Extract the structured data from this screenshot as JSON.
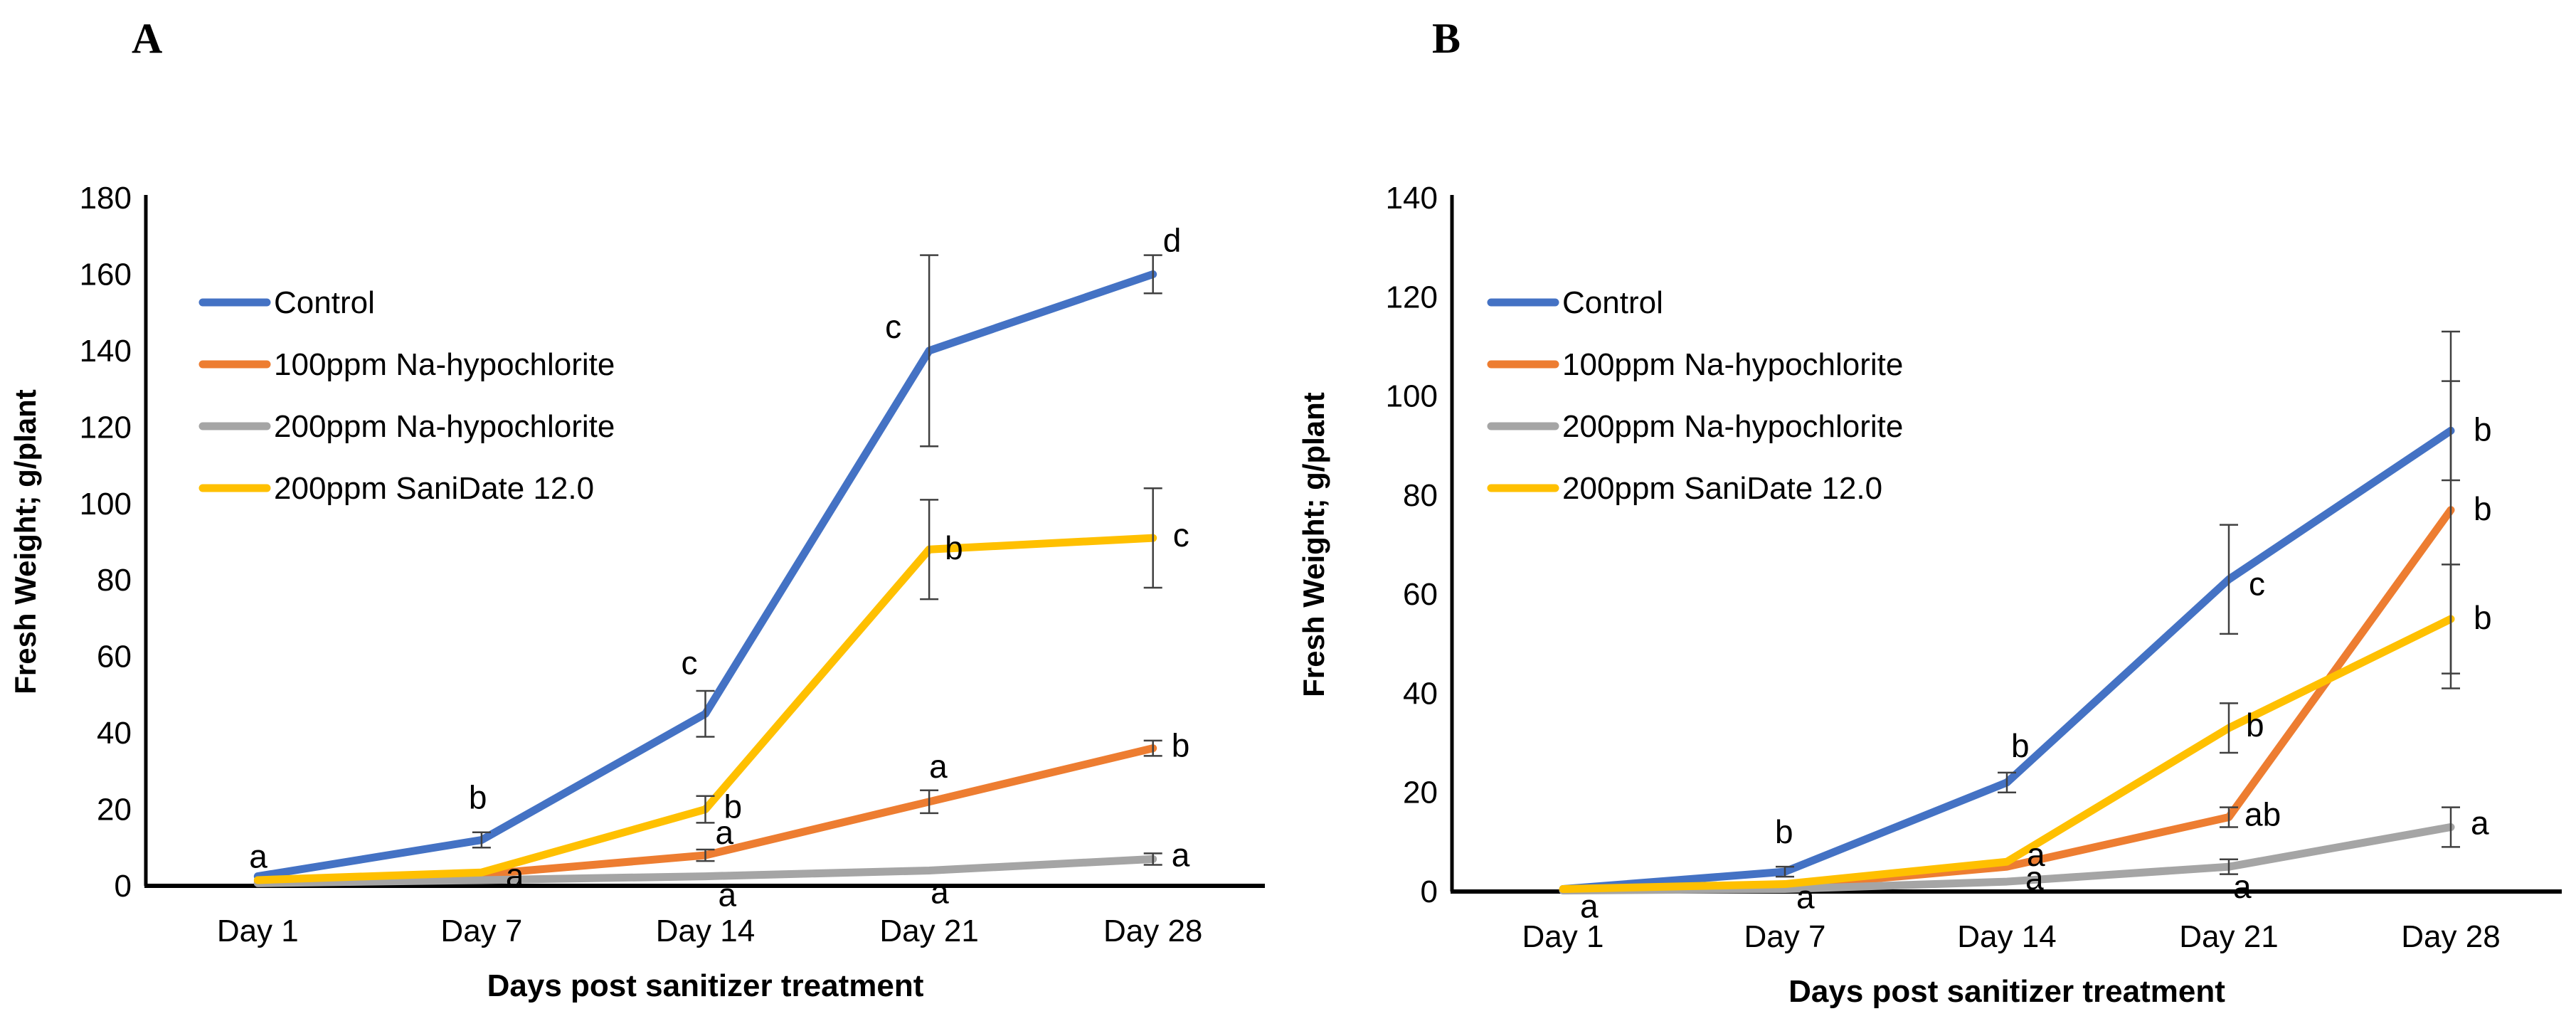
{
  "figure_background": "#ffffff",
  "chart_data": [
    {
      "type": "line",
      "panel_label": "A",
      "xlabel": "Days post sanitizer treatment",
      "ylabel": "Fresh Weight; g/plant",
      "ylim": [
        0,
        180
      ],
      "ytick_step": 20,
      "grid": false,
      "legend_position": "upper-left-inside",
      "error_bar_color": "#404040",
      "categories": [
        "Day 1",
        "Day 7",
        "Day 14",
        "Day 21",
        "Day 28"
      ],
      "series": [
        {
          "name": "Control",
          "color": "#4472C4",
          "values": [
            2.5,
            12,
            45,
            140,
            160
          ],
          "errors": [
            null,
            2,
            6,
            25,
            5
          ],
          "sig": [
            {
              "p": 0,
              "t": "a",
              "dx": -12,
              "dy": -12
            },
            {
              "p": 1,
              "t": "b",
              "dx": -18,
              "dy": -44
            },
            {
              "p": 2,
              "t": "c",
              "dx": -34,
              "dy": -56
            },
            {
              "p": 3,
              "t": "c",
              "dx": -62,
              "dy": -18
            },
            {
              "p": 4,
              "t": "d",
              "dx": 14,
              "dy": -32
            }
          ]
        },
        {
          "name": "100ppm Na-hypochlorite",
          "color": "#ED7D31",
          "values": [
            1,
            3,
            8,
            22,
            36
          ],
          "errors": [
            null,
            null,
            1.5,
            3,
            2
          ],
          "sig": [
            {
              "p": 2,
              "t": "a",
              "dx": 14,
              "dy": -16
            },
            {
              "p": 3,
              "t": "a",
              "dx": 0,
              "dy": -34
            },
            {
              "p": 4,
              "t": "b",
              "dx": 26,
              "dy": 12
            }
          ]
        },
        {
          "name": "200ppm Na-hypochlorite",
          "color": "#A5A5A5",
          "values": [
            0.7,
            1.5,
            2.5,
            4,
            7
          ],
          "errors": [
            null,
            null,
            null,
            null,
            1.5
          ],
          "sig": [
            {
              "p": 2,
              "t": "a",
              "dx": 18,
              "dy": 42
            },
            {
              "p": 3,
              "t": "a",
              "dx": 2,
              "dy": 46
            },
            {
              "p": 4,
              "t": "a",
              "dx": 26,
              "dy": 10
            }
          ]
        },
        {
          "name": "200ppm SaniDate 12.0",
          "color": "#FFC000",
          "values": [
            1.5,
            3.5,
            20,
            88,
            91
          ],
          "errors": [
            null,
            null,
            3.5,
            13,
            13
          ],
          "sig": [
            {
              "p": 1,
              "t": "a",
              "dx": 34,
              "dy": 20
            },
            {
              "p": 2,
              "t": "b",
              "dx": 26,
              "dy": 12
            },
            {
              "p": 3,
              "t": "b",
              "dx": 22,
              "dy": 14
            },
            {
              "p": 4,
              "t": "c",
              "dx": 28,
              "dy": 12
            }
          ]
        }
      ]
    },
    {
      "type": "line",
      "panel_label": "B",
      "xlabel": "Days post sanitizer treatment",
      "ylabel": "Fresh Weight; g/plant",
      "ylim": [
        0,
        140
      ],
      "ytick_step": 20,
      "grid": false,
      "legend_position": "upper-left-inside",
      "error_bar_color": "#404040",
      "categories": [
        "Day 1",
        "Day 7",
        "Day 14",
        "Day 21",
        "Day 28"
      ],
      "series": [
        {
          "name": "Control",
          "color": "#4472C4",
          "values": [
            0.5,
            4,
            22,
            63,
            93
          ],
          "errors": [
            null,
            1,
            2,
            11,
            10
          ],
          "sig": [
            {
              "p": 1,
              "t": "b",
              "dx": -14,
              "dy": -40
            },
            {
              "p": 2,
              "t": "b",
              "dx": 6,
              "dy": -36
            },
            {
              "p": 3,
              "t": "c",
              "dx": 28,
              "dy": 22
            },
            {
              "p": 4,
              "t": "b",
              "dx": 32,
              "dy": 14
            }
          ]
        },
        {
          "name": "100ppm Na-hypochlorite",
          "color": "#ED7D31",
          "values": [
            0.3,
            1,
            5,
            15,
            77
          ],
          "errors": [
            null,
            null,
            null,
            2,
            36
          ],
          "sig": [
            {
              "p": 2,
              "t": "a",
              "dx": 26,
              "dy": 32
            },
            {
              "p": 3,
              "t": "ab",
              "dx": 22,
              "dy": 12
            },
            {
              "p": 4,
              "t": "b",
              "dx": 32,
              "dy": 14
            }
          ]
        },
        {
          "name": "200ppm Na-hypochlorite",
          "color": "#A5A5A5",
          "values": [
            0.2,
            0.5,
            2,
            5,
            13
          ],
          "errors": [
            null,
            null,
            null,
            1.5,
            4
          ],
          "sig": [
            {
              "p": 3,
              "t": "a",
              "dx": 6,
              "dy": 44
            },
            {
              "p": 4,
              "t": "a",
              "dx": 28,
              "dy": 10
            }
          ]
        },
        {
          "name": "200ppm SaniDate 12.0",
          "color": "#FFC000",
          "values": [
            0.5,
            1.5,
            6,
            33,
            55
          ],
          "errors": [
            null,
            null,
            null,
            5,
            11
          ],
          "sig": [
            {
              "p": 0,
              "t": "a",
              "dx": 24,
              "dy": 40
            },
            {
              "p": 1,
              "t": "a",
              "dx": 16,
              "dy": 34
            },
            {
              "p": 2,
              "t": "a",
              "dx": 28,
              "dy": 6
            },
            {
              "p": 3,
              "t": "b",
              "dx": 24,
              "dy": 12
            },
            {
              "p": 4,
              "t": "b",
              "dx": 32,
              "dy": 14
            }
          ]
        }
      ]
    }
  ]
}
